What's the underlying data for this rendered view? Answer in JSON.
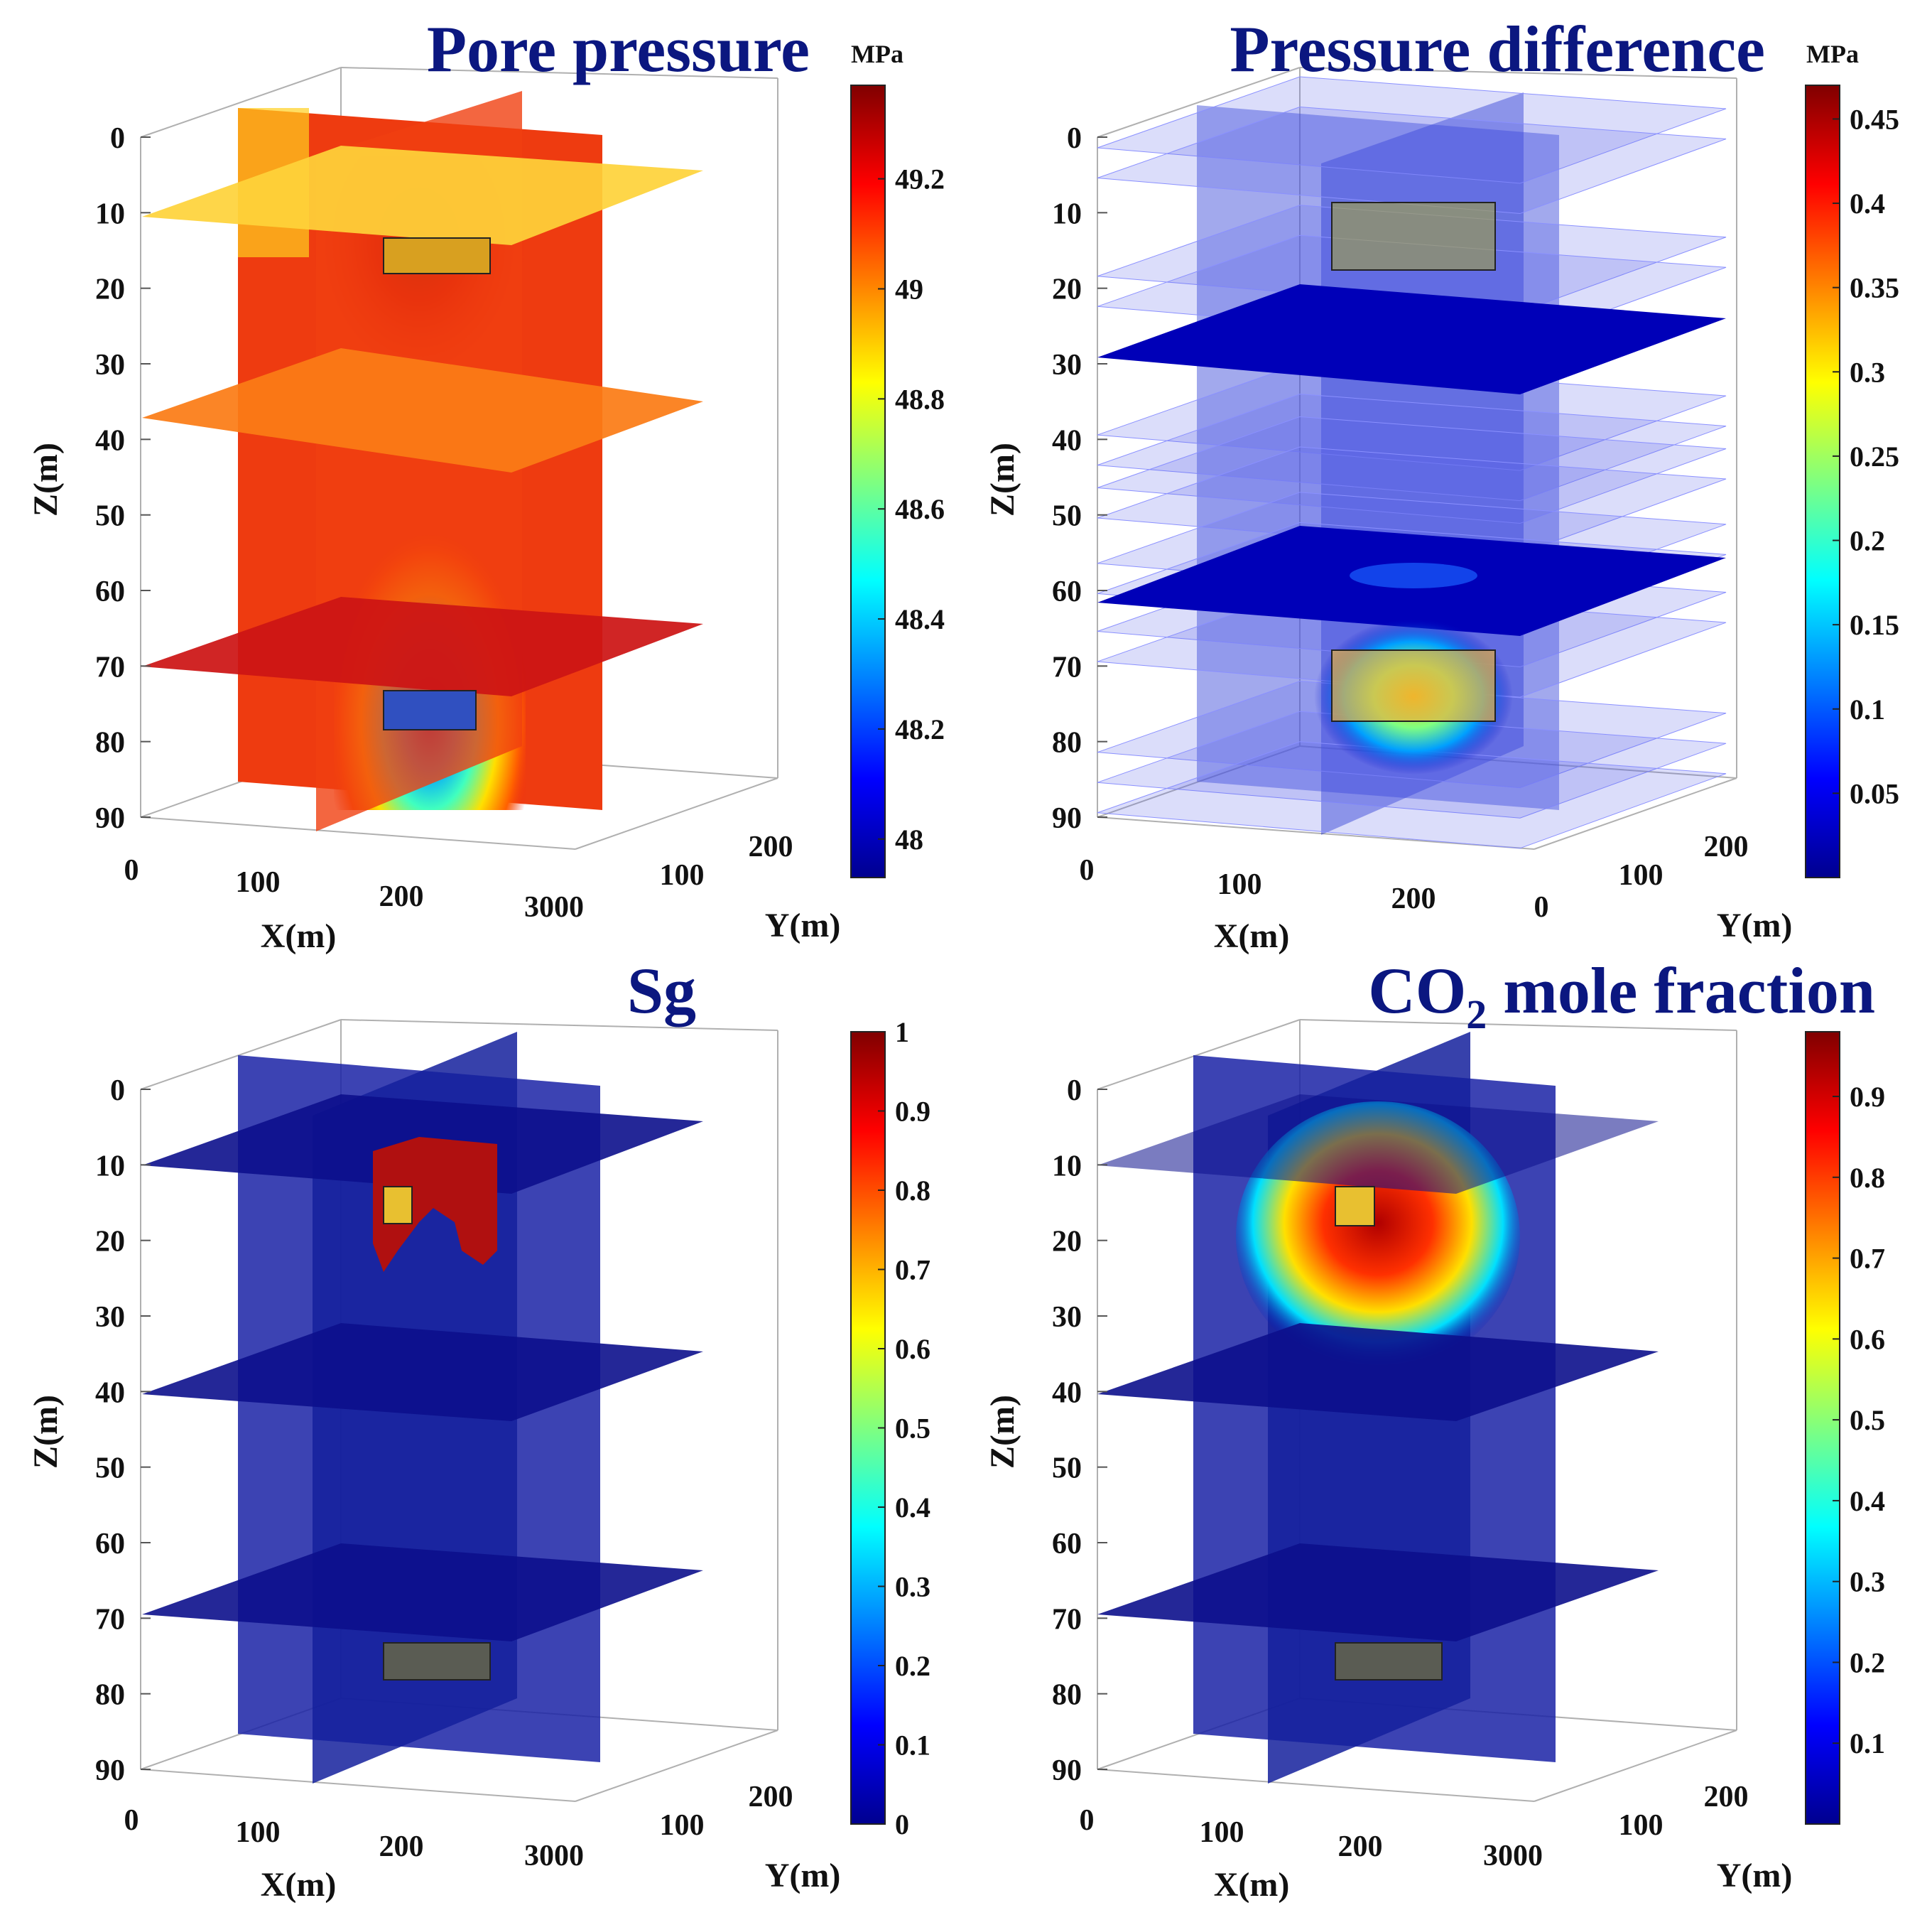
{
  "chart_data": [
    {
      "type": "volume-slice",
      "panel": "top-left",
      "title": "Pore pressure",
      "unit": "MPa",
      "xlabel": "X(m)",
      "ylabel": "Y(m)",
      "zlabel": "Z(m)",
      "xticks": [
        "0",
        "100",
        "200",
        "300"
      ],
      "yticks": [
        "0",
        "100",
        "200"
      ],
      "corner_tick": "3000",
      "zticks": [
        "0",
        "10",
        "20",
        "30",
        "40",
        "50",
        "60",
        "70",
        "80",
        "90"
      ],
      "clim": [
        47.93,
        49.37
      ],
      "colorbar_ticks": [
        "48",
        "48.2",
        "48.4",
        "48.6",
        "48.8",
        "49",
        "49.2"
      ],
      "slices": [
        {
          "plane": "z",
          "depth": 10,
          "value": 48.9
        },
        {
          "plane": "z",
          "depth": 40,
          "value": 49.05
        },
        {
          "plane": "z",
          "depth": 70,
          "value": 49.3
        },
        {
          "plane": "x",
          "value": 49.15
        },
        {
          "plane": "y",
          "value": 49.2
        }
      ],
      "anomaly": {
        "depth_range": [
          45,
          90
        ],
        "min_value": 47.95
      }
    },
    {
      "type": "volume-slice",
      "panel": "top-right",
      "title": "Pressure difference",
      "unit": "MPa",
      "xlabel": "X(m)",
      "ylabel": "Y(m)",
      "zlabel": "Z(m)",
      "xticks": [
        "0",
        "100",
        "200"
      ],
      "yticks": [
        "0",
        "100",
        "200"
      ],
      "zticks": [
        "0",
        "10",
        "20",
        "30",
        "40",
        "50",
        "60",
        "70",
        "80",
        "90"
      ],
      "clim": [
        0.0,
        0.47
      ],
      "colorbar_ticks": [
        "0.05",
        "0.1",
        "0.15",
        "0.2",
        "0.25",
        "0.3",
        "0.35",
        "0.4",
        "0.45"
      ],
      "slices": [
        {
          "plane": "z",
          "depth": 29,
          "value": 0.01
        },
        {
          "plane": "z",
          "depth": 61,
          "value": 0.02
        }
      ],
      "transparent_layers": [
        0,
        4,
        17,
        21,
        38,
        42,
        45,
        49,
        55,
        59,
        64,
        68,
        80,
        84,
        88
      ],
      "hotspot": {
        "depth_range": [
          65,
          80
        ],
        "max_value": 0.35
      }
    },
    {
      "type": "volume-slice",
      "panel": "bottom-left",
      "title": "Sg",
      "unit": "",
      "xlabel": "X(m)",
      "ylabel": "Y(m)",
      "zlabel": "Z(m)",
      "xticks": [
        "0",
        "100",
        "200",
        "300"
      ],
      "yticks": [
        "0",
        "100",
        "200"
      ],
      "corner_tick": "3000",
      "zticks": [
        "0",
        "10",
        "20",
        "30",
        "40",
        "50",
        "60",
        "70",
        "80",
        "90"
      ],
      "clim": [
        0,
        1
      ],
      "colorbar_ticks": [
        "0",
        "0.1",
        "0.2",
        "0.3",
        "0.4",
        "0.5",
        "0.6",
        "0.7",
        "0.8",
        "0.9",
        "1"
      ],
      "slices": [
        {
          "plane": "z",
          "depth": 10,
          "value": 0
        },
        {
          "plane": "z",
          "depth": 40,
          "value": 0
        },
        {
          "plane": "z",
          "depth": 70,
          "value": 0
        },
        {
          "plane": "x",
          "value": 0
        },
        {
          "plane": "y",
          "value": 0
        }
      ],
      "plume": {
        "depth_range": [
          10,
          25
        ],
        "max_value": 0.95
      }
    },
    {
      "type": "volume-slice",
      "panel": "bottom-right",
      "title_main": "CO",
      "title_sub": "2",
      "title_rest": " mole fraction",
      "unit": "",
      "xlabel": "X(m)",
      "ylabel": "Y(m)",
      "zlabel": "Z(m)",
      "xticks": [
        "0",
        "100",
        "200",
        "300"
      ],
      "yticks": [
        "0",
        "100",
        "200"
      ],
      "corner_tick": "3000",
      "zticks": [
        "0",
        "10",
        "20",
        "30",
        "40",
        "50",
        "60",
        "70",
        "80",
        "90"
      ],
      "clim": [
        0,
        0.98
      ],
      "colorbar_ticks": [
        "0.1",
        "0.2",
        "0.3",
        "0.4",
        "0.5",
        "0.6",
        "0.7",
        "0.8",
        "0.9"
      ],
      "slices": [
        {
          "plane": "z",
          "depth": 10,
          "value": 0
        },
        {
          "plane": "z",
          "depth": 40,
          "value": 0
        },
        {
          "plane": "z",
          "depth": 70,
          "value": 0
        },
        {
          "plane": "x",
          "value": 0
        },
        {
          "plane": "y",
          "value": 0
        }
      ],
      "plume": {
        "depth_range": [
          5,
          37
        ],
        "max_value": 0.95
      }
    }
  ]
}
